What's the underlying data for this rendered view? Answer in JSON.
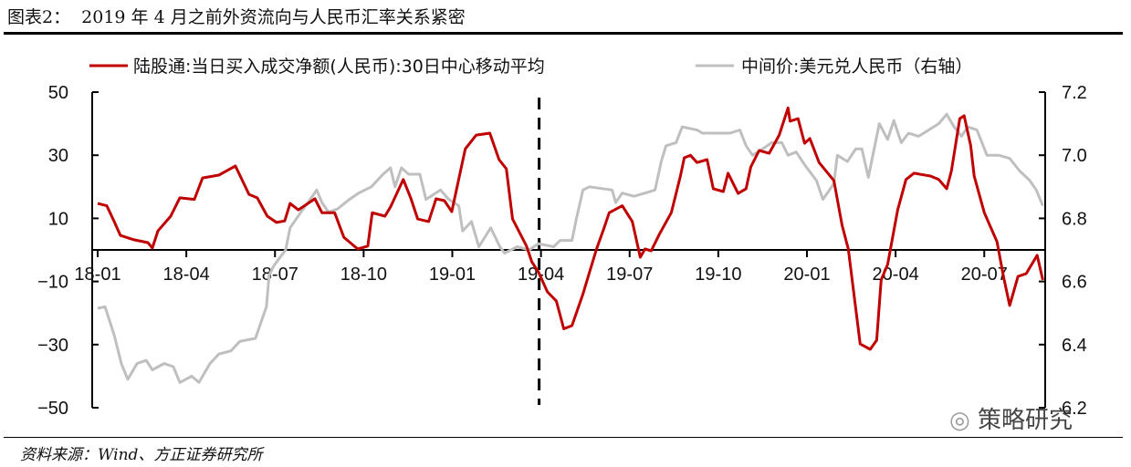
{
  "title": "图表2：  2019 年 4 月之前外资流向与人民币汇率关系紧密",
  "source": "资料来源：Wind、方正证券研究所",
  "watermark": "策略研究",
  "chart_data": {
    "type": "line",
    "title": "图表2：  2019 年 4 月之前外资流向与人民币汇率关系紧密",
    "x_unit": "months since 2018-01",
    "xlim": [
      0,
      32
    ],
    "x_ticks": [
      0,
      3,
      6,
      9,
      12,
      15,
      18,
      21,
      24,
      27,
      30
    ],
    "x_tick_labels": [
      "18-01",
      "18-04",
      "18-07",
      "18-10",
      "19-01",
      "19-04",
      "19-07",
      "19-10",
      "20-01",
      "20-04",
      "20-07"
    ],
    "y_left": {
      "lim": [
        -50,
        50
      ],
      "ticks": [
        50,
        30,
        10,
        -10,
        -30,
        -50
      ],
      "tick_labels": [
        "50",
        "30",
        "10",
        "−10",
        "−30",
        "−50"
      ]
    },
    "y_right": {
      "lim": [
        6.2,
        7.2
      ],
      "ticks": [
        7.2,
        7.0,
        6.8,
        6.6,
        6.4,
        6.2
      ],
      "tick_labels": [
        "7.2",
        "7.0",
        "6.8",
        "6.6",
        "6.4",
        "6.2"
      ]
    },
    "reference_line": {
      "x": 15,
      "label": "2019-04",
      "style": "dashed"
    },
    "legend_position": "top",
    "colors": {
      "northbound": "#c00000",
      "usdcny": "#bfbfbf",
      "axis": "#000000"
    },
    "series": [
      {
        "name": "陆股通:当日买入成交净额(人民币):30日中心移动平均",
        "axis": "left",
        "x": [
          0,
          0.31,
          0.56,
          0.77,
          1.23,
          1.7,
          1.85,
          2.04,
          2.47,
          2.78,
          3.27,
          3.55,
          4.1,
          4.66,
          5.12,
          5.4,
          5.74,
          6.05,
          6.33,
          6.51,
          6.79,
          7.35,
          7.59,
          8.02,
          8.33,
          8.8,
          9.14,
          9.29,
          9.72,
          9.91,
          10.34,
          10.59,
          10.83,
          11.2,
          11.45,
          11.73,
          11.98,
          12.44,
          12.81,
          13.27,
          13.58,
          13.83,
          14.04,
          14.51,
          14.69,
          14.91,
          15.22,
          15.52,
          15.77,
          16.05,
          16.42,
          16.6,
          16.88,
          17.1,
          17.31,
          17.75,
          18.09,
          18.36,
          18.52,
          18.73,
          19.01,
          19.41,
          19.72,
          19.85,
          20.06,
          20.28,
          20.62,
          20.83,
          21.17,
          21.33,
          21.67,
          21.94,
          22.1,
          22.38,
          22.72,
          23.06,
          23.36,
          23.43,
          23.7,
          23.92,
          24.1,
          24.41,
          24.91,
          25.19,
          25.4,
          25.8,
          26.14,
          26.36,
          26.51,
          26.73,
          27.07,
          27.35,
          27.62,
          28.18,
          28.46,
          28.73,
          28.89,
          29.17,
          29.32,
          29.54,
          29.66,
          30.0,
          30.43,
          30.65,
          30.86,
          31.14,
          31.42,
          31.79,
          31.98
        ],
        "values": [
          14.7,
          14,
          9,
          4.6,
          3.2,
          2.3,
          0.6,
          6,
          10.7,
          16.5,
          16,
          22.8,
          23.7,
          26.6,
          17.6,
          16.5,
          10.7,
          8.7,
          9.2,
          14.7,
          12.7,
          16.2,
          11.8,
          11.8,
          4,
          0.3,
          1.2,
          11.8,
          10.7,
          13.6,
          22.3,
          16.5,
          9.8,
          9,
          16.2,
          15.6,
          12.1,
          32,
          36.4,
          37,
          28.6,
          25.7,
          9.8,
          1.2,
          -3.8,
          -6.9,
          -13.3,
          -16.2,
          -25,
          -24,
          -14,
          -8.4,
          0.3,
          6,
          11.8,
          14,
          9,
          -2.3,
          0.3,
          -0.3,
          5,
          11.8,
          23.4,
          29.2,
          30,
          27.7,
          28.6,
          19.4,
          18.5,
          24.3,
          17.9,
          19.4,
          26.3,
          31.5,
          30.6,
          36.4,
          45,
          40.8,
          41.6,
          33.8,
          35.3,
          27.7,
          22,
          7.8,
          0.3,
          -29.8,
          -31.5,
          -28.6,
          -9.5,
          -4.6,
          12.7,
          22.3,
          24.3,
          23.4,
          22.3,
          19.4,
          25.1,
          41.6,
          42.5,
          33,
          23.4,
          11.8,
          2.6,
          -8.4,
          -17.6,
          -8.4,
          -7.5,
          -1.7,
          -9.5
        ]
      },
      {
        "name": "中间价:美元兑人民币（右轴）",
        "axis": "right",
        "x": [
          0,
          0.25,
          0.56,
          0.8,
          1.02,
          1.33,
          1.64,
          1.85,
          2.25,
          2.56,
          2.78,
          3.18,
          3.43,
          3.8,
          4.1,
          4.51,
          4.81,
          5.34,
          5.56,
          5.71,
          5.8,
          5.96,
          6.36,
          6.51,
          6.88,
          7.19,
          7.41,
          7.59,
          7.81,
          8.12,
          8.52,
          8.83,
          9.26,
          9.66,
          9.91,
          10.06,
          10.28,
          10.52,
          10.9,
          11.11,
          11.6,
          11.88,
          12.22,
          12.35,
          12.65,
          12.9,
          13.3,
          13.61,
          13.77,
          14.2,
          14.6,
          14.91,
          15.43,
          15.65,
          16.05,
          16.2,
          16.42,
          16.64,
          17.41,
          17.53,
          17.75,
          18.15,
          18.52,
          18.86,
          19.07,
          19.23,
          19.57,
          19.78,
          20.28,
          20.46,
          21.39,
          21.73,
          21.94,
          22.16,
          22.5,
          22.81,
          23.15,
          23.36,
          23.64,
          23.92,
          24.32,
          24.54,
          24.91,
          25.03,
          25.37,
          25.65,
          25.86,
          26.08,
          26.23,
          26.45,
          26.73,
          26.94,
          27.19,
          27.44,
          27.78,
          28.12,
          28.46,
          28.73,
          28.98,
          29.23,
          29.44,
          29.75,
          30.09,
          30.49,
          30.86,
          31.2,
          31.54,
          31.76,
          31.98
        ],
        "values": [
          6.515,
          6.52,
          6.43,
          6.34,
          6.29,
          6.34,
          6.35,
          6.32,
          6.34,
          6.33,
          6.28,
          6.3,
          6.28,
          6.34,
          6.37,
          6.38,
          6.41,
          6.42,
          6.48,
          6.52,
          6.62,
          6.65,
          6.7,
          6.77,
          6.82,
          6.86,
          6.89,
          6.85,
          6.82,
          6.83,
          6.86,
          6.88,
          6.9,
          6.94,
          6.96,
          6.9,
          6.96,
          6.94,
          6.94,
          6.86,
          6.89,
          6.86,
          6.84,
          6.76,
          6.79,
          6.71,
          6.77,
          6.71,
          6.69,
          6.71,
          6.7,
          6.72,
          6.71,
          6.73,
          6.73,
          6.8,
          6.89,
          6.9,
          6.89,
          6.85,
          6.88,
          6.87,
          6.88,
          6.89,
          6.98,
          7.03,
          7.04,
          7.09,
          7.08,
          7.07,
          7.07,
          7.08,
          7.03,
          7.0,
          7.02,
          7.04,
          7.04,
          7.0,
          7.01,
          6.97,
          6.92,
          6.86,
          6.91,
          7.0,
          6.98,
          7.02,
          7.02,
          6.93,
          7.0,
          7.1,
          7.05,
          7.11,
          7.04,
          7.07,
          7.06,
          7.08,
          7.1,
          7.13,
          7.09,
          7.06,
          7.09,
          7.08,
          7.0,
          7.0,
          6.99,
          6.95,
          6.92,
          6.89,
          6.84
        ]
      }
    ]
  }
}
